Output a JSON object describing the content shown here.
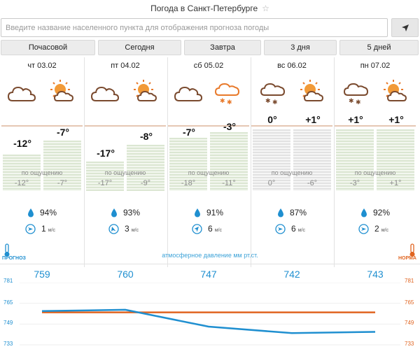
{
  "header": {
    "title": "Погода в Санкт-Петербурге"
  },
  "search": {
    "placeholder": "Введите название населенного пункта для отображения прогноза погоды"
  },
  "tabs": [
    "Почасовой",
    "Сегодня",
    "Завтра",
    "3 дня",
    "5 дней"
  ],
  "days": [
    {
      "date": "чт 03.02",
      "icon1": "cloud-icon",
      "icon2": "sun-behind-cloud-icon",
      "t1": "-12°",
      "t2": "-7°",
      "feels_label": "по ощущению",
      "f1": "-12°",
      "f2": "-7°",
      "humidity": "94%",
      "wind": "1",
      "wind_unit": "м/с"
    },
    {
      "date": "пт 04.02",
      "icon1": "cloud-icon",
      "icon2": "sun-behind-cloud-icon",
      "t1": "-17°",
      "t2": "-8°",
      "feels_label": "по ощущению",
      "f1": "-17°",
      "f2": "-9°",
      "humidity": "93%",
      "wind": "3",
      "wind_unit": "м/с"
    },
    {
      "date": "сб 05.02",
      "icon1": "cloud-icon",
      "icon2": "cloud-snow-icon",
      "t1": "-7°",
      "t2": "-3°",
      "feels_label": "по ощущению",
      "f1": "-18°",
      "f2": "-11°",
      "humidity": "91%",
      "wind": "6",
      "wind_unit": "м/с"
    },
    {
      "date": "вс 06.02",
      "icon1": "cloud-snow-icon",
      "icon2": "sun-behind-cloud-icon",
      "t1": "0°",
      "t2": "+1°",
      "feels_label": "по ощущению",
      "f1": "0°",
      "f2": "-6°",
      "humidity": "87%",
      "wind": "6",
      "wind_unit": "м/с"
    },
    {
      "date": "пн 07.02",
      "icon1": "cloud-snow-icon",
      "icon2": "sun-behind-cloud-icon",
      "t1": "+1°",
      "t2": "+1°",
      "feels_label": "по ощущению",
      "f1": "-3°",
      "f2": "+1°",
      "humidity": "92%",
      "wind": "2",
      "wind_unit": "м/с"
    }
  ],
  "pressure": {
    "title": "атмосферное давление  мм рт.ст.",
    "forecast_label": "ПРОГНОЗ",
    "norm_label": "НОРМА",
    "values": [
      "759",
      "760",
      "747",
      "742",
      "743"
    ],
    "scale": [
      "781",
      "765",
      "749",
      "733"
    ]
  },
  "chart_data": {
    "type": "line",
    "categories": [
      "чт 03.02",
      "пт 04.02",
      "сб 05.02",
      "вс 06.02",
      "пн 07.02"
    ],
    "series": [
      {
        "values": [
          759,
          760,
          747,
          742,
          743
        ],
        "color": "#1f8fd0"
      },
      {
        "values": [
          758,
          758,
          758,
          758,
          758
        ],
        "color": "#e06420"
      }
    ],
    "ylim": [
      733,
      781
    ]
  },
  "colors": {
    "accent": "#1f8fd0",
    "norm": "#e06420",
    "icon_orange": "#e8792a"
  }
}
